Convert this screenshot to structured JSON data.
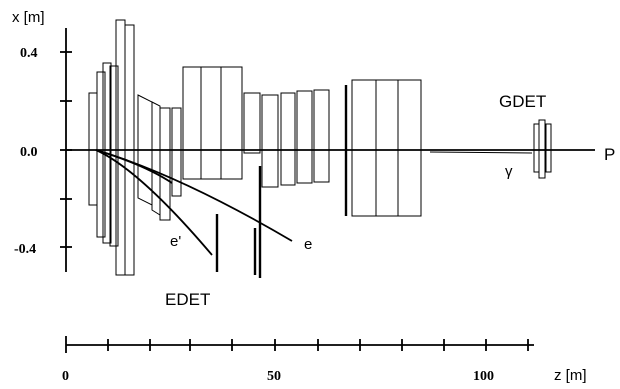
{
  "axes": {
    "x_axis_label": "x [m]",
    "x_ticks": [
      "0.4",
      "0.0",
      "-0.4"
    ],
    "z_axis_label": "z [m]",
    "z_ticks": [
      "0",
      "50",
      "100"
    ]
  },
  "labels": {
    "gdet": "GDET",
    "edet": "EDET",
    "proton": "P",
    "gamma": "γ",
    "electron": "e",
    "electron_prime": "e'"
  }
}
